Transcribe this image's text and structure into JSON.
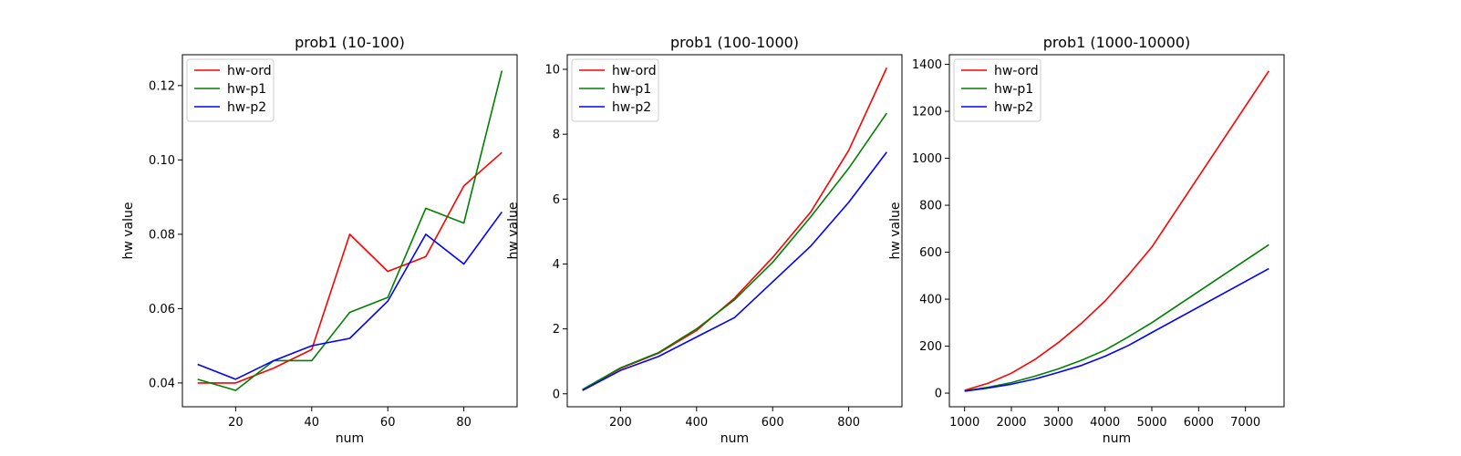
{
  "chart_data": [
    {
      "type": "line",
      "title": "prob1 (10-100)",
      "xlabel": "num",
      "ylabel": "hw value",
      "xlim": [
        6,
        94
      ],
      "ylim": [
        0.0336,
        0.1283
      ],
      "xticks": [
        20,
        40,
        60,
        80
      ],
      "xtick_labels": [
        "20",
        "40",
        "60",
        "80"
      ],
      "yticks": [
        0.04,
        0.06,
        0.08,
        0.1,
        0.12
      ],
      "ytick_labels": [
        "0.04",
        "0.06",
        "0.08",
        "0.10",
        "0.12"
      ],
      "legend_position": "upper-left",
      "x": [
        10,
        20,
        30,
        40,
        50,
        60,
        70,
        80,
        90
      ],
      "series": [
        {
          "name": "hw-ord",
          "color": "#ff0000",
          "values": [
            0.04,
            0.04,
            0.044,
            0.049,
            0.08,
            0.07,
            0.074,
            0.093,
            0.102
          ]
        },
        {
          "name": "hw-p1",
          "color": "#008000",
          "values": [
            0.041,
            0.038,
            0.046,
            0.046,
            0.059,
            0.063,
            0.087,
            0.083,
            0.124
          ]
        },
        {
          "name": "hw-p2",
          "color": "#0000ff",
          "values": [
            0.045,
            0.041,
            0.046,
            0.05,
            0.052,
            0.062,
            0.08,
            0.072,
            0.086
          ]
        }
      ]
    },
    {
      "type": "line",
      "title": "prob1 (100-1000)",
      "xlabel": "num",
      "ylabel": "hw value",
      "xlim": [
        60,
        940
      ],
      "ylim": [
        -0.4,
        10.45
      ],
      "xticks": [
        200,
        400,
        600,
        800
      ],
      "xtick_labels": [
        "200",
        "400",
        "600",
        "800"
      ],
      "yticks": [
        0,
        2,
        4,
        6,
        8,
        10
      ],
      "ytick_labels": [
        "0",
        "2",
        "4",
        "6",
        "8",
        "10"
      ],
      "legend_position": "upper-left",
      "x": [
        100,
        200,
        300,
        400,
        500,
        600,
        700,
        800,
        900
      ],
      "series": [
        {
          "name": "hw-ord",
          "color": "#ff0000",
          "values": [
            0.13,
            0.78,
            1.25,
            1.95,
            2.95,
            4.2,
            5.6,
            7.5,
            10.05
          ]
        },
        {
          "name": "hw-p1",
          "color": "#008000",
          "values": [
            0.13,
            0.8,
            1.27,
            2.0,
            2.9,
            4.05,
            5.45,
            6.95,
            8.65
          ]
        },
        {
          "name": "hw-p2",
          "color": "#0000ff",
          "values": [
            0.1,
            0.72,
            1.15,
            1.75,
            2.35,
            3.45,
            4.55,
            5.9,
            7.45
          ]
        }
      ]
    },
    {
      "type": "line",
      "title": "prob1 (1000-10000)",
      "xlabel": "num",
      "ylabel": "hw value",
      "xlim": [
        675,
        7825
      ],
      "ylim": [
        -58,
        1441
      ],
      "xticks": [
        1000,
        2000,
        3000,
        4000,
        5000,
        6000,
        7000
      ],
      "xtick_labels": [
        "1000",
        "2000",
        "3000",
        "4000",
        "5000",
        "6000",
        "7000"
      ],
      "yticks": [
        0,
        200,
        400,
        600,
        800,
        1000,
        1200,
        1400
      ],
      "ytick_labels": [
        "0",
        "200",
        "400",
        "600",
        "800",
        "1000",
        "1200",
        "1400"
      ],
      "legend_position": "upper-left",
      "x": [
        1000,
        1500,
        2000,
        2500,
        3000,
        3500,
        4000,
        4500,
        5000,
        7500
      ],
      "series": [
        {
          "name": "hw-ord",
          "color": "#ff0000",
          "values": [
            12,
            42,
            85,
            143,
            215,
            298,
            392,
            503,
            622,
            1372
          ]
        },
        {
          "name": "hw-p1",
          "color": "#008000",
          "values": [
            10,
            25,
            45,
            72,
            103,
            140,
            183,
            240,
            300,
            632
          ]
        },
        {
          "name": "hw-p2",
          "color": "#0000ff",
          "values": [
            8,
            22,
            38,
            60,
            88,
            118,
            157,
            203,
            258,
            530
          ]
        }
      ]
    }
  ]
}
